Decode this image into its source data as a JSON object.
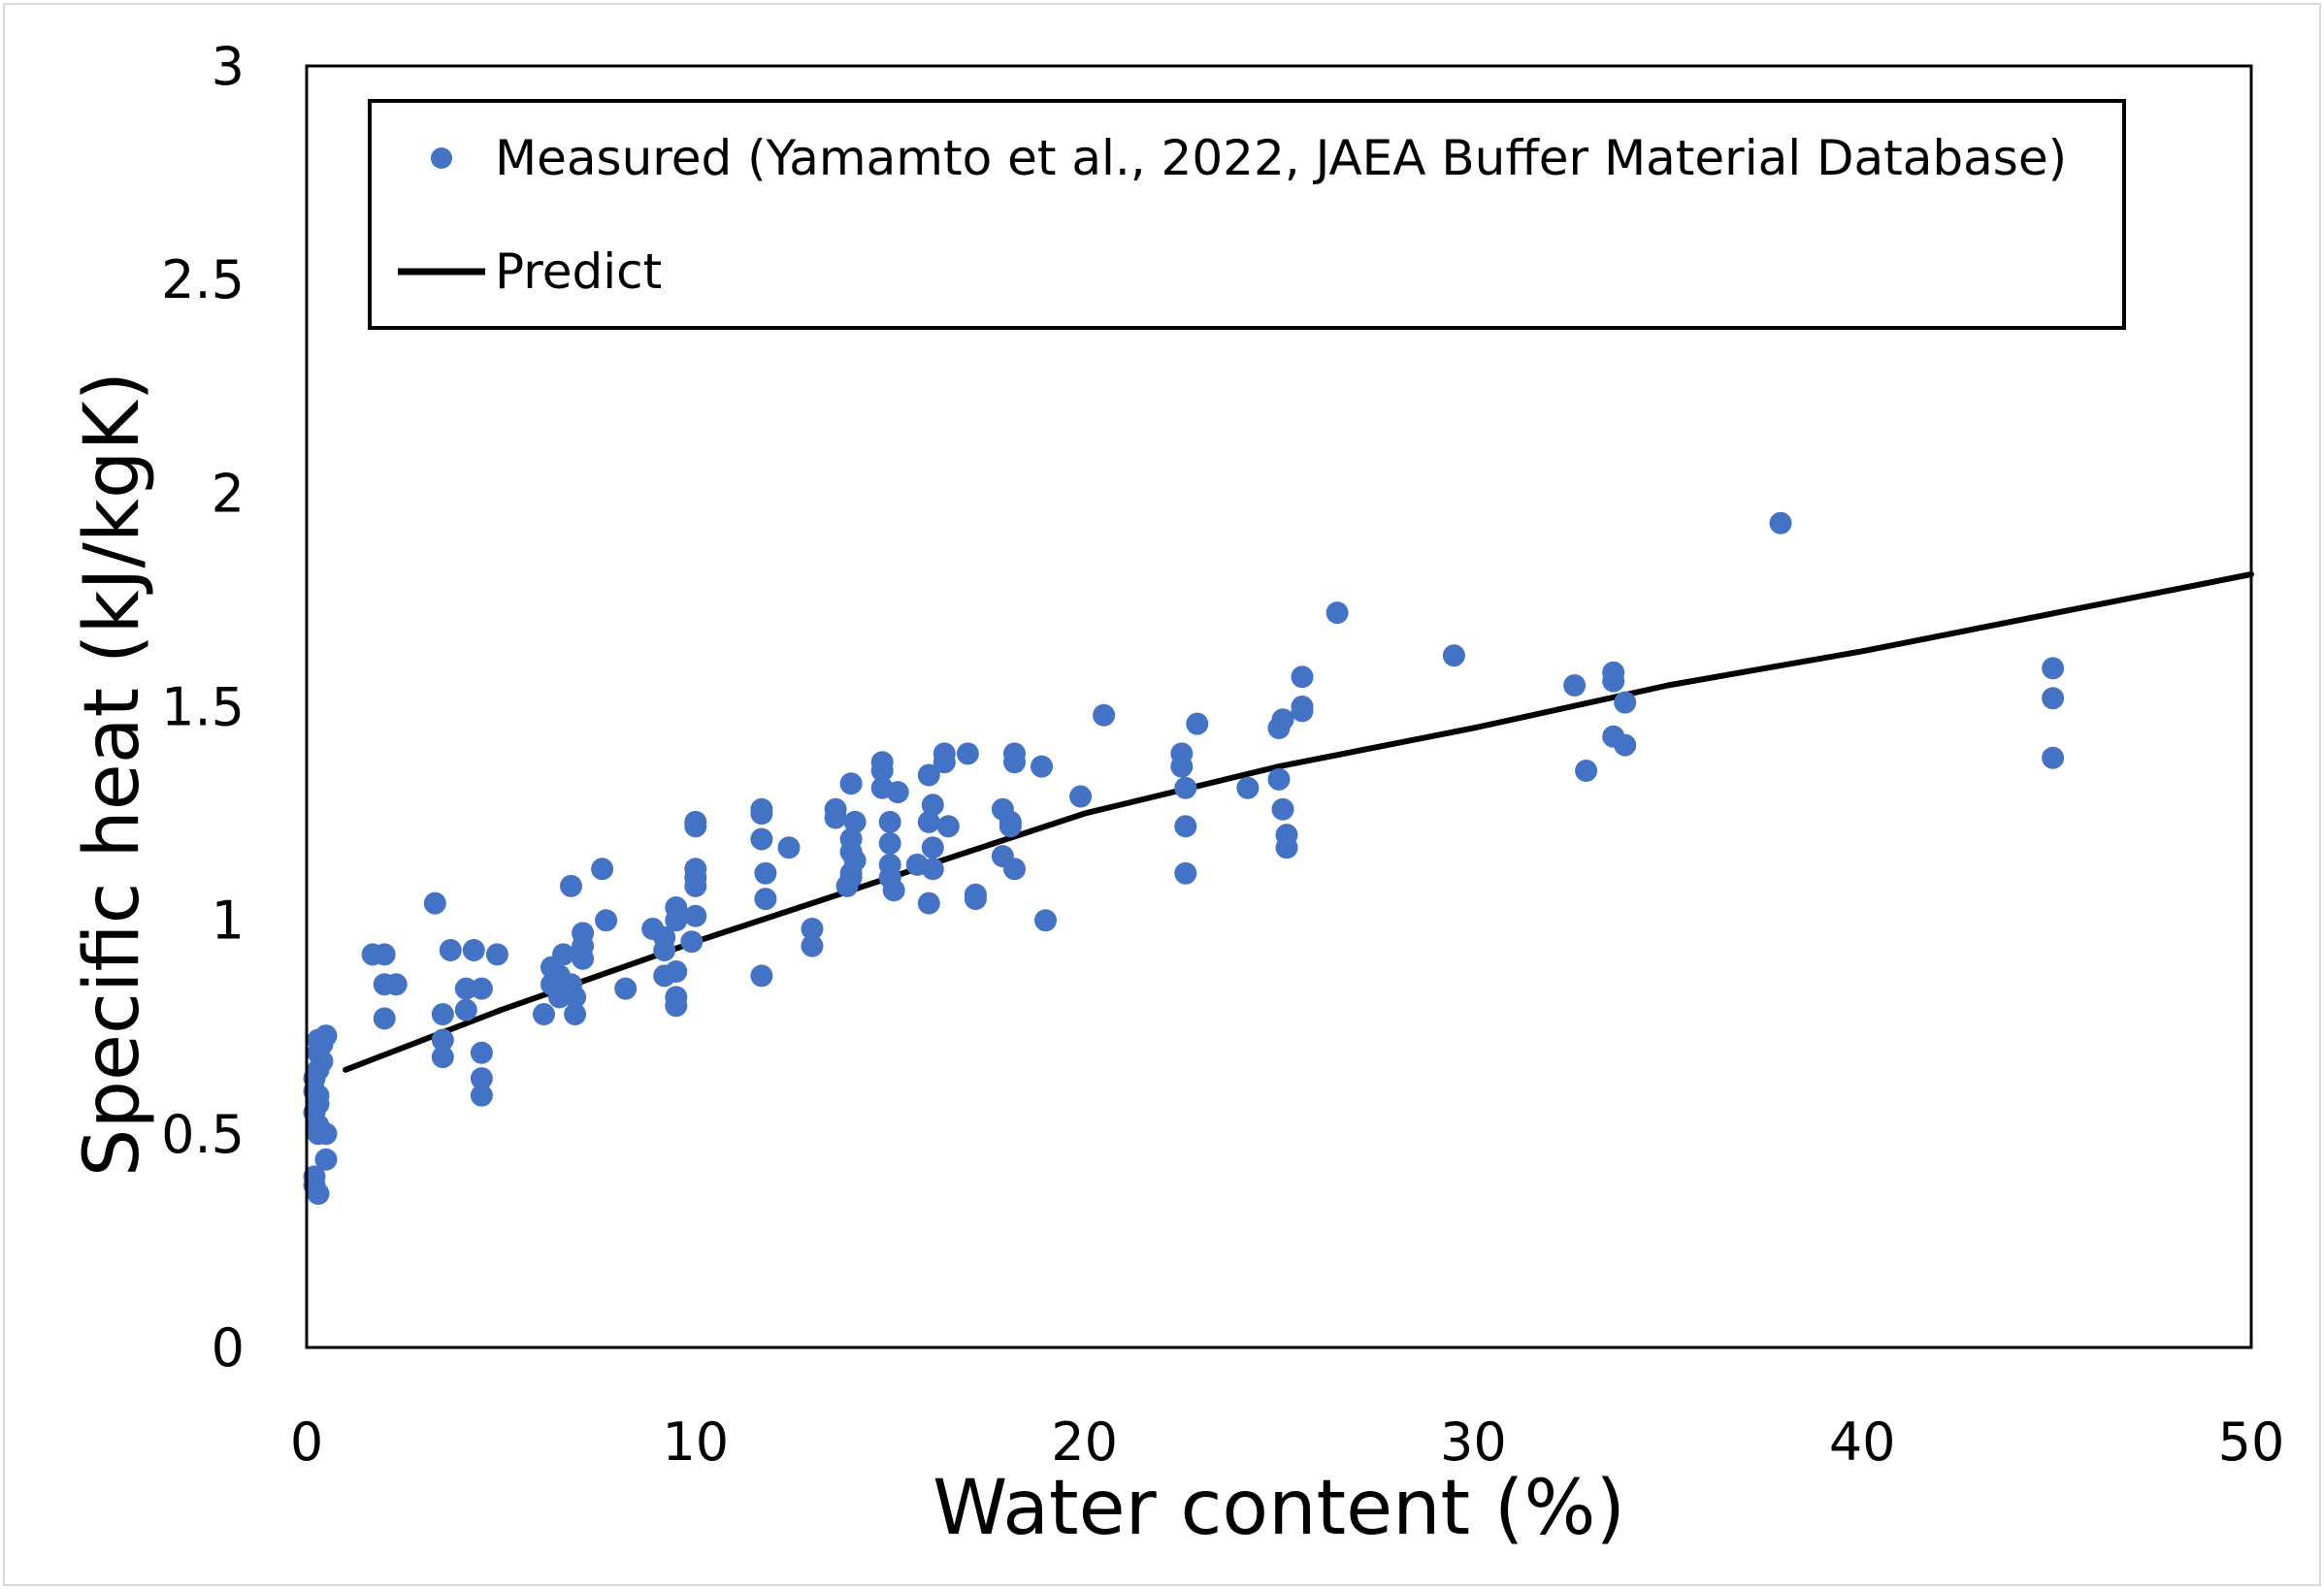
{
  "chart_data": {
    "type": "scatter",
    "xlabel": "Water content  (%)",
    "ylabel": "Specific heat   (kJ/kgK)",
    "xlim": [
      0,
      50
    ],
    "ylim": [
      0,
      3
    ],
    "x_ticks": [
      "0",
      "10",
      "20",
      "30",
      "40",
      "50"
    ],
    "y_ticks": [
      "0",
      "0.5",
      "1",
      "1.5",
      "2",
      "2.5",
      "3"
    ],
    "x_tick_values": [
      0,
      10,
      20,
      30,
      40,
      50
    ],
    "y_tick_values": [
      0,
      0.5,
      1,
      1.5,
      2,
      2.5,
      3
    ],
    "legend_position": "top",
    "colors": {
      "measured": "#4472C4",
      "predict": "#000000"
    },
    "series": [
      {
        "name": "Measured (Yamamto et al., 2022, JAEA Buffer Material Database)",
        "kind": "scatter",
        "points": [
          [
            0.2,
            0.38
          ],
          [
            0.3,
            0.36
          ],
          [
            0.2,
            0.4
          ],
          [
            0.5,
            0.44
          ],
          [
            0.5,
            0.5
          ],
          [
            0.3,
            0.5
          ],
          [
            0.3,
            0.52
          ],
          [
            0.2,
            0.55
          ],
          [
            0.3,
            0.57
          ],
          [
            0.3,
            0.59
          ],
          [
            0.2,
            0.6
          ],
          [
            0.2,
            0.63
          ],
          [
            0.3,
            0.65
          ],
          [
            0.4,
            0.67
          ],
          [
            0.3,
            0.69
          ],
          [
            0.4,
            0.71
          ],
          [
            0.3,
            0.72
          ],
          [
            0.5,
            0.73
          ],
          [
            1.7,
            0.92
          ],
          [
            2.0,
            0.92
          ],
          [
            2.0,
            0.85
          ],
          [
            2.3,
            0.85
          ],
          [
            2.0,
            0.77
          ],
          [
            3.3,
            1.04
          ],
          [
            3.7,
            0.93
          ],
          [
            3.5,
            0.78
          ],
          [
            3.5,
            0.72
          ],
          [
            3.5,
            0.68
          ],
          [
            4.1,
            0.84
          ],
          [
            4.1,
            0.79
          ],
          [
            4.3,
            0.93
          ],
          [
            4.5,
            0.84
          ],
          [
            4.5,
            0.69
          ],
          [
            4.5,
            0.63
          ],
          [
            4.5,
            0.59
          ],
          [
            4.9,
            0.92
          ],
          [
            6.1,
            0.78
          ],
          [
            6.3,
            0.89
          ],
          [
            6.3,
            0.85
          ],
          [
            6.5,
            0.87
          ],
          [
            6.5,
            0.82
          ],
          [
            6.6,
            0.92
          ],
          [
            6.8,
            1.08
          ],
          [
            6.8,
            0.85
          ],
          [
            6.9,
            0.82
          ],
          [
            6.9,
            0.78
          ],
          [
            7.1,
            0.97
          ],
          [
            7.1,
            0.94
          ],
          [
            7.1,
            0.91
          ],
          [
            7.6,
            1.12
          ],
          [
            7.7,
            1.0
          ],
          [
            8.2,
            0.84
          ],
          [
            8.9,
            0.98
          ],
          [
            9.2,
            0.96
          ],
          [
            9.2,
            0.93
          ],
          [
            9.2,
            0.87
          ],
          [
            9.5,
            1.03
          ],
          [
            9.5,
            1.0
          ],
          [
            9.5,
            0.88
          ],
          [
            9.5,
            0.82
          ],
          [
            9.5,
            0.8
          ],
          [
            10.0,
            1.23
          ],
          [
            10.0,
            1.22
          ],
          [
            10.0,
            1.12
          ],
          [
            10.0,
            1.1
          ],
          [
            10.0,
            1.08
          ],
          [
            10.0,
            1.01
          ],
          [
            9.9,
            0.95
          ],
          [
            11.7,
            1.26
          ],
          [
            11.7,
            1.25
          ],
          [
            11.7,
            1.19
          ],
          [
            11.8,
            1.11
          ],
          [
            11.8,
            1.05
          ],
          [
            11.7,
            0.87
          ],
          [
            12.4,
            1.17
          ],
          [
            13.0,
            0.98
          ],
          [
            13.0,
            0.94
          ],
          [
            13.6,
            1.26
          ],
          [
            13.6,
            1.24
          ],
          [
            13.9,
            1.08
          ],
          [
            14.0,
            1.32
          ],
          [
            14.0,
            1.19
          ],
          [
            14.0,
            1.16
          ],
          [
            14.0,
            1.11
          ],
          [
            14.1,
            1.14
          ],
          [
            14.1,
            1.23
          ],
          [
            14.0,
            1.1
          ],
          [
            14.8,
            1.37
          ],
          [
            14.8,
            1.35
          ],
          [
            14.8,
            1.31
          ],
          [
            15.0,
            1.23
          ],
          [
            15.0,
            1.18
          ],
          [
            15.0,
            1.13
          ],
          [
            15.0,
            1.1
          ],
          [
            15.1,
            1.07
          ],
          [
            15.2,
            1.3
          ],
          [
            15.7,
            1.13
          ],
          [
            16.0,
            1.34
          ],
          [
            16.0,
            1.23
          ],
          [
            16.0,
            1.04
          ],
          [
            16.1,
            1.27
          ],
          [
            16.1,
            1.17
          ],
          [
            16.1,
            1.12
          ],
          [
            16.4,
            1.39
          ],
          [
            16.4,
            1.37
          ],
          [
            16.5,
            1.22
          ],
          [
            17.0,
            1.39
          ],
          [
            17.2,
            1.06
          ],
          [
            17.2,
            1.05
          ],
          [
            17.9,
            1.26
          ],
          [
            17.9,
            1.15
          ],
          [
            18.1,
            1.22
          ],
          [
            18.2,
            1.39
          ],
          [
            18.2,
            1.37
          ],
          [
            18.1,
            1.23
          ],
          [
            18.2,
            1.12
          ],
          [
            18.9,
            1.36
          ],
          [
            19.0,
            1.0
          ],
          [
            19.9,
            1.29
          ],
          [
            20.5,
            1.48
          ],
          [
            22.5,
            1.39
          ],
          [
            22.5,
            1.36
          ],
          [
            22.6,
            1.31
          ],
          [
            22.6,
            1.22
          ],
          [
            22.6,
            1.11
          ],
          [
            22.9,
            1.46
          ],
          [
            24.2,
            1.31
          ],
          [
            25.0,
            1.45
          ],
          [
            25.0,
            1.33
          ],
          [
            25.1,
            1.26
          ],
          [
            25.1,
            1.47
          ],
          [
            25.2,
            1.2
          ],
          [
            25.2,
            1.17
          ],
          [
            25.6,
            1.57
          ],
          [
            25.6,
            1.5
          ],
          [
            25.6,
            1.49
          ],
          [
            26.5,
            1.72
          ],
          [
            29.5,
            1.62
          ],
          [
            32.6,
            1.55
          ],
          [
            32.9,
            1.35
          ],
          [
            33.6,
            1.58
          ],
          [
            33.6,
            1.56
          ],
          [
            33.6,
            1.43
          ],
          [
            33.9,
            1.51
          ],
          [
            33.9,
            1.41
          ],
          [
            37.9,
            1.93
          ],
          [
            44.9,
            1.59
          ],
          [
            44.9,
            1.52
          ],
          [
            44.9,
            1.38
          ]
        ]
      },
      {
        "name": "Predict",
        "kind": "line",
        "points": [
          [
            1,
            0.65
          ],
          [
            5,
            0.79
          ],
          [
            10,
            0.95
          ],
          [
            15,
            1.1
          ],
          [
            20,
            1.25
          ],
          [
            25,
            1.36
          ],
          [
            30,
            1.45
          ],
          [
            35,
            1.55
          ],
          [
            40,
            1.63
          ],
          [
            45,
            1.72
          ],
          [
            50,
            1.81
          ]
        ]
      }
    ]
  }
}
